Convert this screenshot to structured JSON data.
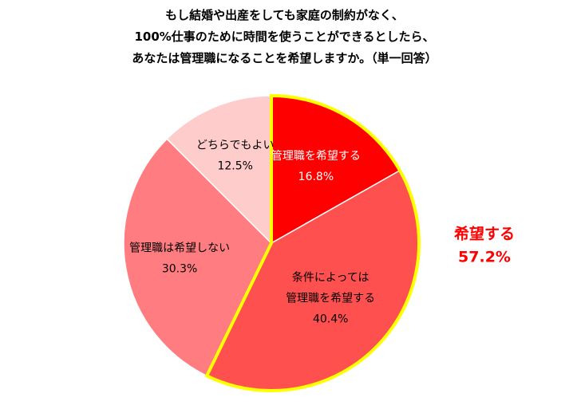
{
  "title_lines": [
    "もし結婚や出産をしても家庭の制約がなく、",
    "100%仕事のために時間を使うことができるとしたら、",
    "あなたは管理職になることを希望しますか。（単一回答）"
  ],
  "chart_data": {
    "type": "pie",
    "title": "もし結婚や出産をしても家庭の制約がなく、100%仕事のために時間を使うことができるとしたら、あなたは管理職になることを希望しますか。（単一回答）",
    "start": "12 o'clock, clockwise",
    "slices": [
      {
        "label_lines": [
          "管理職を希望する"
        ],
        "value": 16.8,
        "value_label": "16.8%",
        "color": "#ff0000",
        "label_color": "#ffffff"
      },
      {
        "label_lines": [
          "条件によっては",
          "管理職を希望する"
        ],
        "value": 40.4,
        "value_label": "40.4%",
        "color": "#ff5050",
        "label_color": "#000000"
      },
      {
        "label_lines": [
          "管理職は希望しない"
        ],
        "value": 30.3,
        "value_label": "30.3%",
        "color": "#ff7c80",
        "label_color": "#000000"
      },
      {
        "label_lines": [
          "どちらでもよい"
        ],
        "value": 12.5,
        "value_label": "12.5%",
        "color": "#ffcccc",
        "label_color": "#000000"
      }
    ],
    "highlight": {
      "slices": [
        0,
        1
      ],
      "outline_color": "#ffff00",
      "label": "希望する",
      "value_label": "57.2%",
      "value": 57.2,
      "label_color": "#ff0000"
    }
  }
}
